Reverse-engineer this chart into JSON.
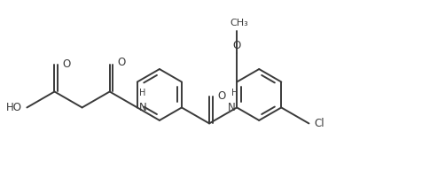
{
  "bg_color": "#ffffff",
  "line_color": "#3a3a3a",
  "line_width": 1.4,
  "font_size": 8.5,
  "figsize": [
    4.77,
    1.92
  ],
  "dpi": 100,
  "xlim": [
    0,
    9.5
  ],
  "ylim": [
    0,
    3.6
  ]
}
